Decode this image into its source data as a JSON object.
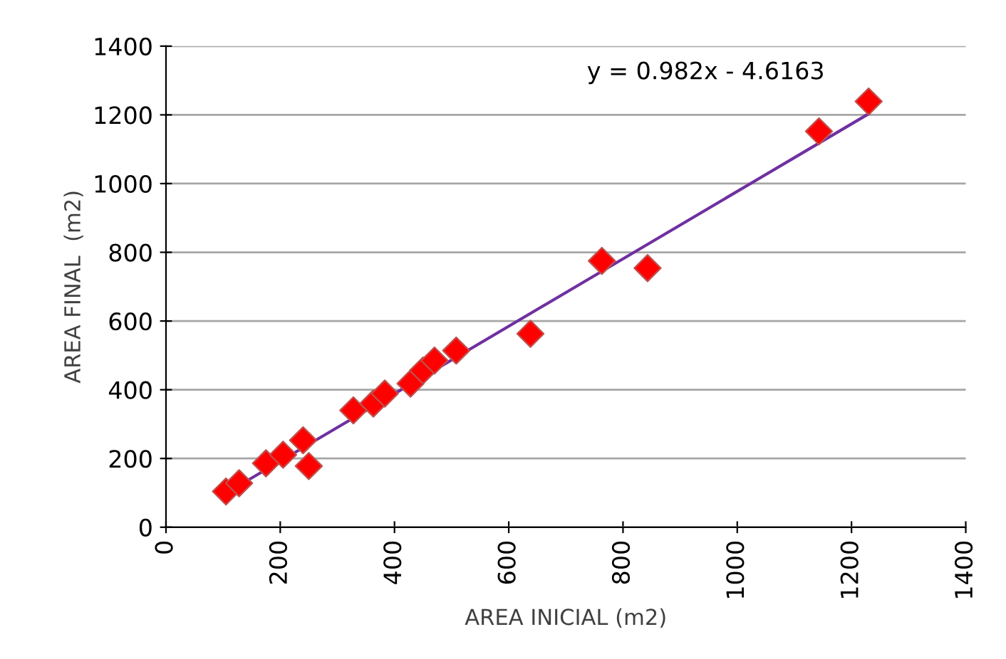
{
  "chart_data": {
    "type": "scatter",
    "xlabel": "AREA INICIAL (m2)",
    "ylabel": "AREA FINAL  (m2)",
    "xlim": [
      0,
      1400
    ],
    "xticks": [
      0,
      200,
      400,
      600,
      800,
      1000,
      1200,
      1400
    ],
    "ylim": [
      0,
      1400
    ],
    "yticks": [
      0,
      200,
      400,
      600,
      800,
      1000,
      1200,
      1400
    ],
    "grid": "y",
    "marker": "diamond",
    "series": [
      {
        "color": "#ff0000",
        "x": [
          105,
          128,
          175,
          205,
          240,
          250,
          328,
          363,
          383,
          428,
          450,
          470,
          508,
          638,
          763,
          843,
          1143,
          1230
        ],
        "values": [
          104,
          128,
          186,
          211,
          253,
          178,
          340,
          360,
          389,
          418,
          456,
          485,
          514,
          563,
          775,
          754,
          1152,
          1239
        ]
      },
      {
        "type": "line",
        "color": "#7030a0",
        "x": [
          105,
          1230
        ],
        "values": [
          99,
          1203
        ],
        "marker": "none"
      }
    ],
    "annotations": [
      "y = 0.982x - 4.6163"
    ]
  }
}
